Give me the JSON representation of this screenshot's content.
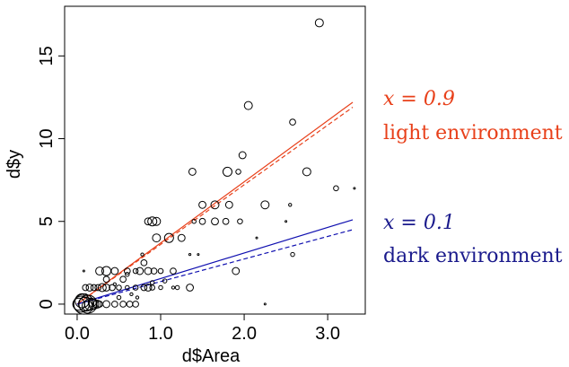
{
  "chart_data": {
    "type": "scatter",
    "title": "",
    "xlabel": "d$Area",
    "ylabel": "d$y",
    "xlim": [
      -0.15,
      3.45
    ],
    "ylim": [
      -0.6,
      18.0
    ],
    "x_ticks": [
      0.0,
      1.0,
      2.0,
      3.0
    ],
    "x_tick_labels": [
      "0.0",
      "1.0",
      "2.0",
      "3.0"
    ],
    "y_ticks": [
      0,
      5,
      10,
      15
    ],
    "y_tick_labels": [
      "0",
      "5",
      "10",
      "15"
    ],
    "grid": false,
    "legend": "none",
    "points": [
      {
        "x": 0.02,
        "y": 0,
        "r": 0.6
      },
      {
        "x": 0.05,
        "y": 0,
        "r": 0.8
      },
      {
        "x": 0.08,
        "y": 0,
        "r": 1.0
      },
      {
        "x": 0.1,
        "y": 0,
        "r": 0.7
      },
      {
        "x": 0.13,
        "y": 0,
        "r": 0.9
      },
      {
        "x": 0.16,
        "y": 0,
        "r": 0.6
      },
      {
        "x": 0.2,
        "y": 0,
        "r": 0.5
      },
      {
        "x": 0.24,
        "y": 0,
        "r": 0.4
      },
      {
        "x": 0.27,
        "y": 0,
        "r": 0.3
      },
      {
        "x": 0.06,
        "y": 0.2,
        "r": 0.7
      },
      {
        "x": 0.12,
        "y": -0.1,
        "r": 0.5
      },
      {
        "x": 0.18,
        "y": 0.1,
        "r": 0.4
      },
      {
        "x": 0.35,
        "y": 0,
        "r": 0.35
      },
      {
        "x": 0.45,
        "y": 0,
        "r": 0.3
      },
      {
        "x": 0.55,
        "y": 0,
        "r": 0.3
      },
      {
        "x": 0.63,
        "y": 0,
        "r": 0.3
      },
      {
        "x": 0.7,
        "y": 0,
        "r": 0.3
      },
      {
        "x": 0.1,
        "y": 1,
        "r": 0.3
      },
      {
        "x": 0.15,
        "y": 1,
        "r": 0.35
      },
      {
        "x": 0.2,
        "y": 1,
        "r": 0.3
      },
      {
        "x": 0.25,
        "y": 1,
        "r": 0.3
      },
      {
        "x": 0.3,
        "y": 1,
        "r": 0.4
      },
      {
        "x": 0.35,
        "y": 1,
        "r": 0.35
      },
      {
        "x": 0.42,
        "y": 1,
        "r": 0.3
      },
      {
        "x": 0.5,
        "y": 1,
        "r": 0.25
      },
      {
        "x": 0.6,
        "y": 1,
        "r": 0.2
      },
      {
        "x": 0.7,
        "y": 1,
        "r": 0.25
      },
      {
        "x": 0.8,
        "y": 1,
        "r": 0.3
      },
      {
        "x": 0.85,
        "y": 1,
        "r": 0.35
      },
      {
        "x": 0.9,
        "y": 1,
        "r": 0.25
      },
      {
        "x": 1.0,
        "y": 1,
        "r": 0.2
      },
      {
        "x": 1.15,
        "y": 1,
        "r": 0.15
      },
      {
        "x": 1.2,
        "y": 1,
        "r": 0.2
      },
      {
        "x": 1.35,
        "y": 1,
        "r": 0.35
      },
      {
        "x": 0.08,
        "y": 2,
        "r": 0.08
      },
      {
        "x": 0.27,
        "y": 2,
        "r": 0.4
      },
      {
        "x": 0.35,
        "y": 2,
        "r": 0.45
      },
      {
        "x": 0.45,
        "y": 2,
        "r": 0.35
      },
      {
        "x": 0.6,
        "y": 2,
        "r": 0.3
      },
      {
        "x": 0.7,
        "y": 2,
        "r": 0.25
      },
      {
        "x": 0.75,
        "y": 2,
        "r": 0.35
      },
      {
        "x": 0.85,
        "y": 2,
        "r": 0.35
      },
      {
        "x": 0.92,
        "y": 2,
        "r": 0.3
      },
      {
        "x": 1.0,
        "y": 2,
        "r": 0.25
      },
      {
        "x": 1.15,
        "y": 2,
        "r": 0.3
      },
      {
        "x": 1.9,
        "y": 2,
        "r": 0.35
      },
      {
        "x": 0.35,
        "y": 1.5,
        "r": 0.3
      },
      {
        "x": 0.55,
        "y": 1.5,
        "r": 0.3
      },
      {
        "x": 0.8,
        "y": 2.5,
        "r": 0.3
      },
      {
        "x": 0.6,
        "y": 1.8,
        "r": 0.2
      },
      {
        "x": 0.9,
        "y": 1.3,
        "r": 0.2
      },
      {
        "x": 1.05,
        "y": 1.4,
        "r": 0.2
      },
      {
        "x": 0.45,
        "y": 1.2,
        "r": 0.15
      },
      {
        "x": 0.1,
        "y": 0.5,
        "r": 0.2
      },
      {
        "x": 0.5,
        "y": 0.4,
        "r": 0.2
      },
      {
        "x": 0.65,
        "y": 0.6,
        "r": 0.15
      },
      {
        "x": 0.72,
        "y": 0.4,
        "r": 0.15
      },
      {
        "x": 0.78,
        "y": 3,
        "r": 0.15
      },
      {
        "x": 1.35,
        "y": 3,
        "r": 0.1
      },
      {
        "x": 1.45,
        "y": 3,
        "r": 0.08
      },
      {
        "x": 0.85,
        "y": 5,
        "r": 0.35
      },
      {
        "x": 0.9,
        "y": 5,
        "r": 0.45
      },
      {
        "x": 0.95,
        "y": 5,
        "r": 0.4
      },
      {
        "x": 0.95,
        "y": 4,
        "r": 0.4
      },
      {
        "x": 1.1,
        "y": 4,
        "r": 0.45
      },
      {
        "x": 1.25,
        "y": 4,
        "r": 0.35
      },
      {
        "x": 1.4,
        "y": 5,
        "r": 0.2
      },
      {
        "x": 1.5,
        "y": 5,
        "r": 0.3
      },
      {
        "x": 1.5,
        "y": 6,
        "r": 0.35
      },
      {
        "x": 1.65,
        "y": 5,
        "r": 0.35
      },
      {
        "x": 1.65,
        "y": 6,
        "r": 0.4
      },
      {
        "x": 1.78,
        "y": 5,
        "r": 0.3
      },
      {
        "x": 1.82,
        "y": 6,
        "r": 0.35
      },
      {
        "x": 1.95,
        "y": 5,
        "r": 0.25
      },
      {
        "x": 1.98,
        "y": 9,
        "r": 0.35
      },
      {
        "x": 1.93,
        "y": 8,
        "r": 0.25
      },
      {
        "x": 1.8,
        "y": 8,
        "r": 0.45
      },
      {
        "x": 1.38,
        "y": 8,
        "r": 0.35
      },
      {
        "x": 2.05,
        "y": 12,
        "r": 0.4
      },
      {
        "x": 2.15,
        "y": 4,
        "r": 0.08
      },
      {
        "x": 2.25,
        "y": 6,
        "r": 0.4
      },
      {
        "x": 2.25,
        "y": 0,
        "r": 0.08
      },
      {
        "x": 2.5,
        "y": 5,
        "r": 0.08
      },
      {
        "x": 2.55,
        "y": 6,
        "r": 0.15
      },
      {
        "x": 2.58,
        "y": 3,
        "r": 0.2
      },
      {
        "x": 2.58,
        "y": 11,
        "r": 0.3
      },
      {
        "x": 2.75,
        "y": 8,
        "r": 0.4
      },
      {
        "x": 2.9,
        "y": 17,
        "r": 0.4
      },
      {
        "x": 3.1,
        "y": 7,
        "r": 0.25
      },
      {
        "x": 3.32,
        "y": 7,
        "r": 0.08
      }
    ],
    "lines": [
      {
        "name": "light environment",
        "color": "#e8401a",
        "style": "solid",
        "x": [
          0.0,
          3.3
        ],
        "y": [
          0.0,
          12.2
        ]
      },
      {
        "name": "light environment",
        "color": "#e8401a",
        "style": "dashed",
        "x": [
          0.0,
          3.3
        ],
        "y": [
          0.0,
          11.9
        ]
      },
      {
        "name": "dark environment",
        "color": "#1010b0",
        "style": "solid",
        "x": [
          0.0,
          3.3
        ],
        "y": [
          0.0,
          5.1
        ]
      },
      {
        "name": "dark environment",
        "color": "#1010b0",
        "style": "dashed",
        "x": [
          0.0,
          3.3
        ],
        "y": [
          0.0,
          4.5
        ]
      }
    ],
    "annotations": [
      {
        "id": "light",
        "math": "x = 0.9",
        "label": "light environment",
        "color": "#e8401a"
      },
      {
        "id": "dark",
        "math": "x = 0.1",
        "label": "dark environment",
        "color": "#1a1a8c"
      }
    ]
  }
}
